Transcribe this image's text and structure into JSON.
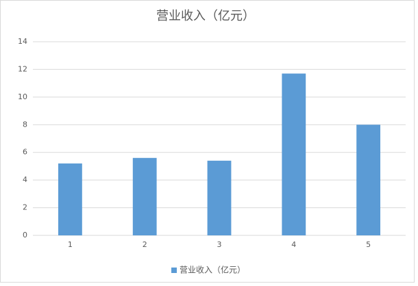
{
  "chart_data": {
    "type": "bar",
    "title": "营业收入（亿元）",
    "categories": [
      "1",
      "2",
      "3",
      "4",
      "5"
    ],
    "series": [
      {
        "name": "营业收入（亿元）",
        "color": "#5b9bd5",
        "values": [
          5.2,
          5.6,
          5.4,
          11.7,
          8.0
        ]
      }
    ],
    "ylim": [
      0,
      14
    ],
    "yticks": [
      0,
      2,
      4,
      6,
      8,
      10,
      12,
      14
    ],
    "grid": true,
    "legend": "bottom"
  }
}
